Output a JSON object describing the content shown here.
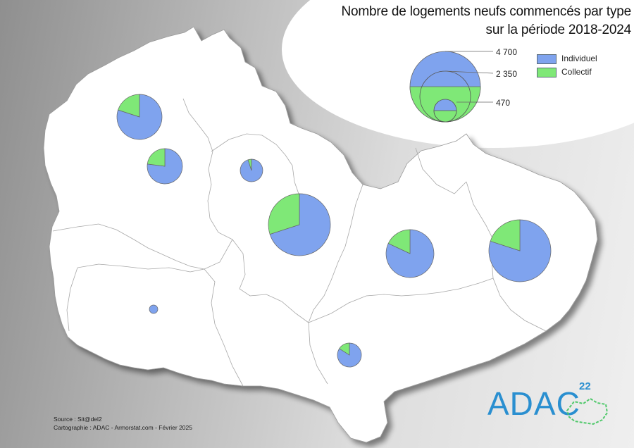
{
  "map": {
    "title_line1": "Nombre de logements neufs commencés par type",
    "title_line2": "sur la période 2018-2024",
    "region_fill": "#ffffff",
    "colors": {
      "individuel": "#7fa3ee",
      "collectif": "#7fe877"
    }
  },
  "legend": {
    "size_values": [
      "4 700",
      "2 350",
      "470"
    ],
    "items": [
      {
        "label": "Individuel",
        "color": "#7fa3ee"
      },
      {
        "label": "Collectif",
        "color": "#7fe877"
      }
    ]
  },
  "credits": {
    "source": "Source : Sit@del2",
    "cartographie": "Cartographie : ADAC - Armorstat.com - Février 2025"
  },
  "logo": {
    "text": "ADAC",
    "superscript": "22"
  },
  "pies": [
    {
      "name": "pie-north-west",
      "individuel_share": 0.8
    },
    {
      "name": "pie-west",
      "individuel_share": 0.77
    },
    {
      "name": "pie-north-centre",
      "individuel_share": 0.95
    },
    {
      "name": "pie-centre",
      "individuel_share": 0.7
    },
    {
      "name": "pie-east-centre",
      "individuel_share": 0.82
    },
    {
      "name": "pie-east",
      "individuel_share": 0.8
    },
    {
      "name": "pie-south-west",
      "individuel_share": 1.0
    },
    {
      "name": "pie-south",
      "individuel_share": 0.84
    }
  ]
}
